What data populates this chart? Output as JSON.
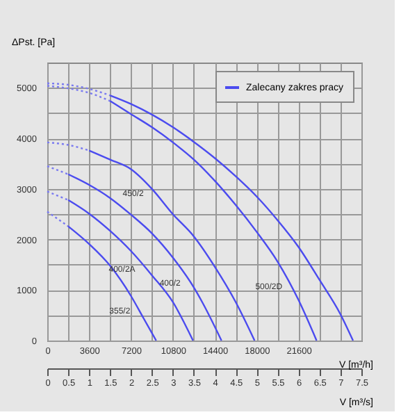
{
  "chart_data": {
    "type": "line",
    "xlabel": "V [m³/s]",
    "ylabel": "ΔPst. [Pa]",
    "x2label": "V [m³/h]",
    "xlim": [
      0,
      7.5
    ],
    "xticks": [
      0,
      0.5,
      1,
      1.5,
      2,
      2.5,
      3,
      3.5,
      4,
      4.5,
      5,
      5.5,
      6,
      6.5,
      7,
      7.5
    ],
    "x2lim": [
      0,
      27000
    ],
    "x2ticks": [
      0,
      3600,
      7200,
      10800,
      14400,
      18000,
      21600
    ],
    "ylim": [
      0,
      5500
    ],
    "yticks": [
      0,
      {
        "value": 500,
        "label": null
      },
      1000,
      {
        "value": 1500,
        "label": null
      },
      2000,
      {
        "value": 2500,
        "label": null
      },
      3000,
      {
        "value": 3500,
        "label": null
      },
      4000,
      {
        "value": 4500,
        "label": null
      },
      5000
    ],
    "grid": true,
    "legend": "top right",
    "marker": "none",
    "series": [
      {
        "color": "#7a7af0",
        "line_style": "dotted",
        "x": [
          0,
          0.5,
          1,
          1.5
        ],
        "values": [
          5090,
          5060,
          4980,
          4850
        ]
      },
      {
        "name": "Zalecany zakres pracy",
        "color": "#4b4bef",
        "line_style": "solid",
        "x": [
          1.5,
          2,
          2.5,
          3,
          3.5,
          4,
          4.5,
          5,
          5.5,
          6,
          6.5,
          7,
          7.3
        ],
        "values": [
          4850,
          4680,
          4470,
          4220,
          3930,
          3610,
          3250,
          2850,
          2380,
          1850,
          1200,
          520,
          0
        ]
      },
      {
        "color": "#7a7af0",
        "line_style": "dotted",
        "x": [
          0,
          0.5,
          1,
          1.5
        ],
        "values": [
          5040,
          4990,
          4900,
          4740
        ]
      },
      {
        "color": "#4b4bef",
        "line_style": "solid",
        "x": [
          1.5,
          2,
          2.5,
          3,
          3.5,
          4,
          4.5,
          5,
          5.5,
          6,
          6.43
        ],
        "values": [
          4740,
          4480,
          4220,
          3920,
          3580,
          3160,
          2680,
          2150,
          1560,
          800,
          0
        ]
      },
      {
        "color": "#7a7af0",
        "line_style": "dotted",
        "x": [
          0,
          0.5,
          1
        ],
        "values": [
          3920,
          3870,
          3760
        ]
      },
      {
        "color": "#4b4bef",
        "line_style": "solid",
        "x": [
          1,
          1.5,
          2,
          2.5,
          3,
          3.5,
          4,
          4.5,
          4.95
        ],
        "values": [
          3760,
          3580,
          3390,
          3000,
          2500,
          2060,
          1460,
          760,
          0
        ]
      },
      {
        "color": "#7a7af0",
        "line_style": "dotted",
        "x": [
          0,
          0.5
        ],
        "values": [
          3450,
          3290
        ]
      },
      {
        "color": "#4b4bef",
        "line_style": "solid",
        "x": [
          0.5,
          1,
          1.5,
          2,
          2.5,
          3,
          3.5,
          3.7,
          4.16
        ],
        "values": [
          3290,
          3080,
          2820,
          2490,
          2120,
          1640,
          1050,
          760,
          0
        ]
      },
      {
        "color": "#7a7af0",
        "line_style": "dotted",
        "x": [
          0,
          0.5
        ],
        "values": [
          2950,
          2780
        ]
      },
      {
        "color": "#4b4bef",
        "line_style": "solid",
        "x": [
          0.5,
          1,
          1.5,
          2,
          2.5,
          3,
          3.48
        ],
        "values": [
          2780,
          2510,
          2170,
          1770,
          1290,
          760,
          0
        ]
      },
      {
        "color": "#7a7af0",
        "line_style": "dotted",
        "x": [
          0,
          0.5
        ],
        "values": [
          2550,
          2260
        ]
      },
      {
        "color": "#4b4bef",
        "line_style": "solid",
        "x": [
          0.5,
          1,
          1.5,
          2,
          2.3,
          2.6
        ],
        "values": [
          2260,
          1910,
          1480,
          880,
          440,
          0
        ]
      }
    ],
    "annotations": [
      {
        "text": "355/2",
        "x": 2.08,
        "y": 760
      },
      {
        "text": "400/2A",
        "x": 2.2,
        "y": 1580
      },
      {
        "text": "400/2",
        "x": 3.28,
        "y": 1310
      },
      {
        "text": "450/2",
        "x": 2.4,
        "y": 3080
      },
      {
        "text": "500/2D",
        "x": 5.71,
        "y": 1240
      }
    ]
  }
}
